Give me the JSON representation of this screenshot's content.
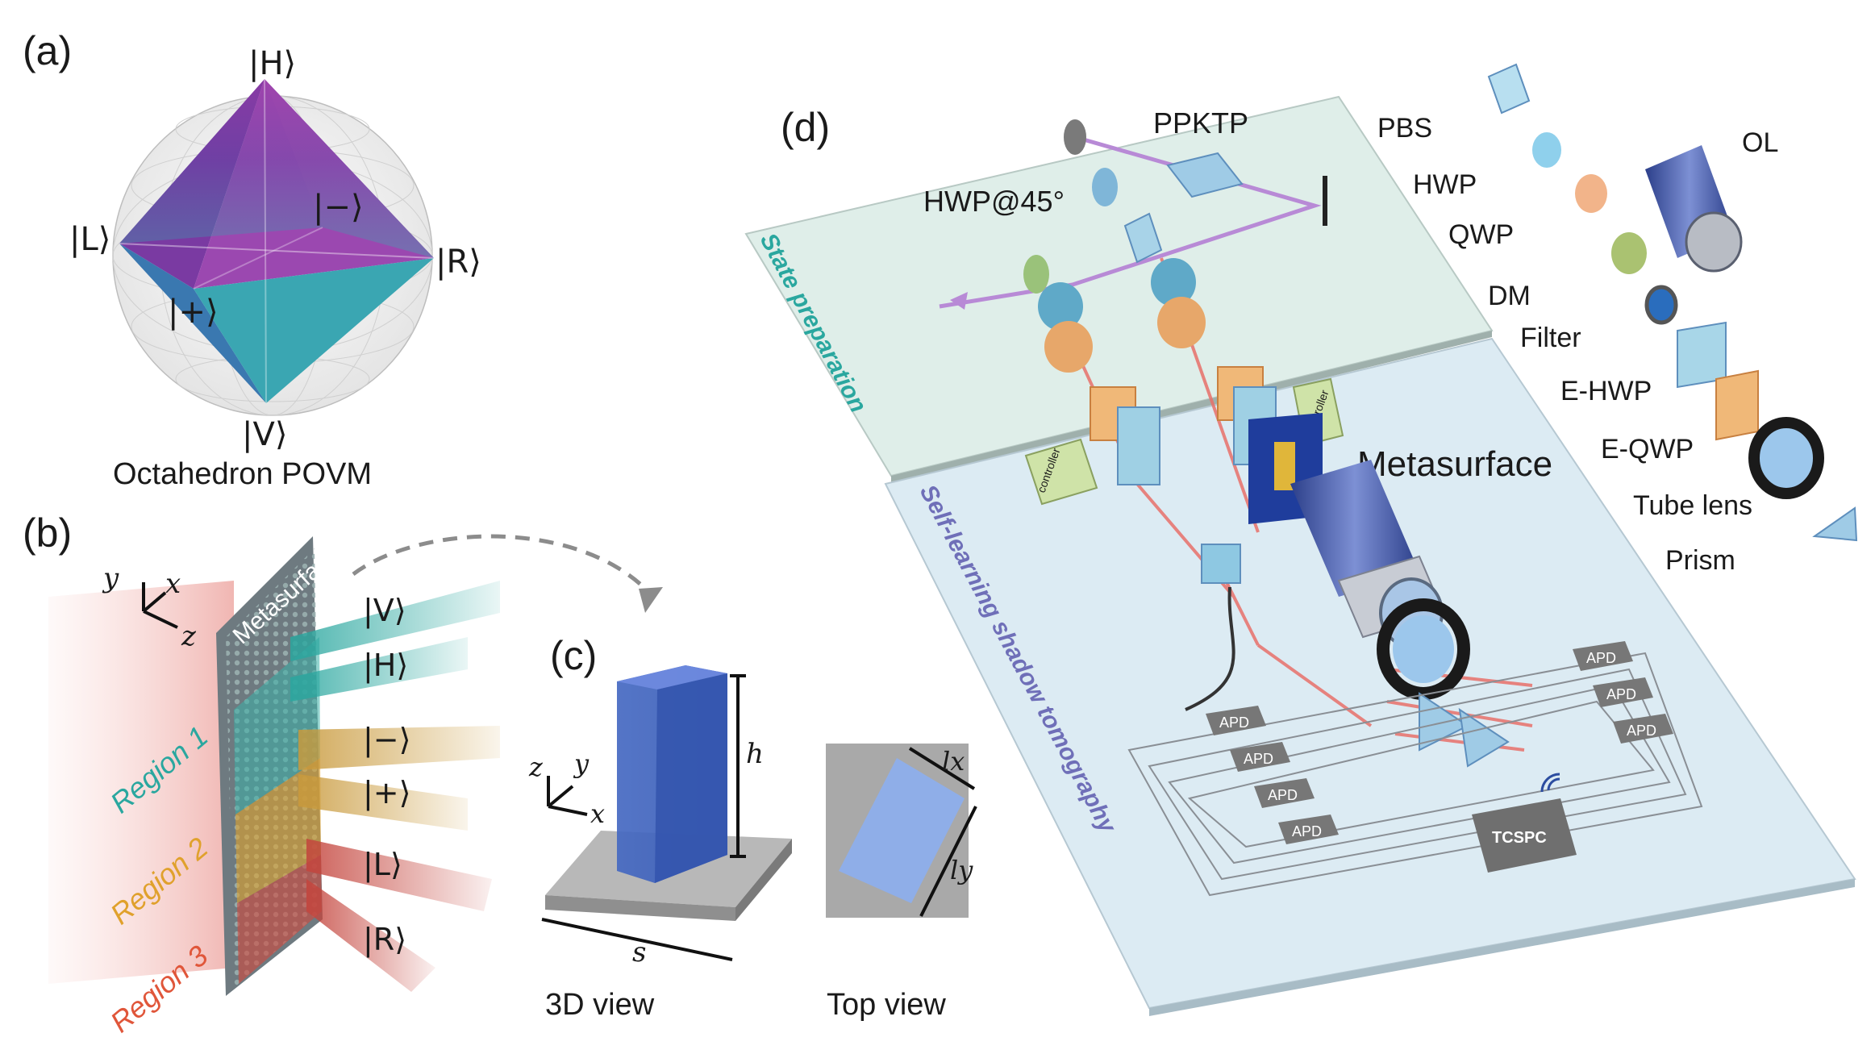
{
  "panels": {
    "a": {
      "tag": "(a)",
      "states": [
        "|H⟩",
        "|V⟩",
        "|L⟩",
        "|R⟩",
        "|−⟩",
        "|+⟩"
      ],
      "caption": "Octahedron POVM"
    },
    "b": {
      "tag": "(b)",
      "axes": [
        "y",
        "x",
        "z"
      ],
      "surface_label": "Metasurface",
      "regions": [
        "Region 1",
        "Region 2",
        "Region 3"
      ],
      "region_colors": [
        "#2bb3ad",
        "#e0a12c",
        "#e0563a"
      ],
      "beams": [
        "|V⟩",
        "|H⟩",
        "|−⟩",
        "|+⟩",
        "|L⟩",
        "|R⟩"
      ]
    },
    "c": {
      "tag": "(c)",
      "axes": [
        "z",
        "y",
        "x"
      ],
      "dims": [
        "h",
        "s",
        "lx",
        "ly"
      ],
      "caption_3d": "3D view",
      "caption_top": "Top view"
    },
    "d": {
      "tag": "(d)",
      "section_top": "State preparation",
      "section_bottom": "Self-learning shadow tomography",
      "ppktp": "PPKTP",
      "hwp45": "HWP@45°",
      "metasurface": "Metasurface",
      "controller": "controller",
      "apd": "APD",
      "tcspc": "TCSPC",
      "legend": [
        "PBS",
        "OL",
        "HWP",
        "QWP",
        "DM",
        "Filter",
        "E-HWP",
        "E-QWP",
        "Tube lens",
        "Prism"
      ]
    }
  }
}
